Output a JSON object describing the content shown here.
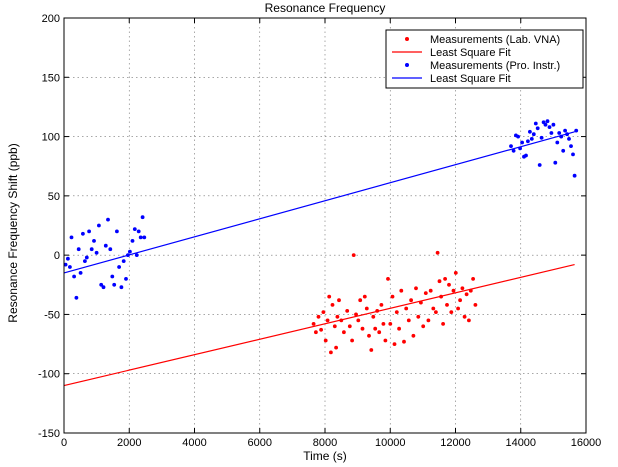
{
  "chart_data": {
    "type": "scatter",
    "title": "Resonance Frequency",
    "xlabel": "Time (s)",
    "ylabel": "Resonance Frequency Shift (ppb)",
    "xlim": [
      0,
      16000
    ],
    "ylim": [
      -150,
      200
    ],
    "xticks": [
      0,
      2000,
      4000,
      6000,
      8000,
      10000,
      12000,
      14000,
      16000
    ],
    "yticks": [
      -150,
      -100,
      -50,
      0,
      50,
      100,
      150,
      200
    ],
    "grid": true,
    "legend_position": "top-right",
    "series": [
      {
        "name": "Measurements (Lab. VNA)",
        "kind": "scatter",
        "color": "#ff0000",
        "points": [
          [
            7650,
            -58
          ],
          [
            7720,
            -65
          ],
          [
            7800,
            -52
          ],
          [
            7880,
            -63
          ],
          [
            7950,
            -48
          ],
          [
            8020,
            -72
          ],
          [
            8080,
            -55
          ],
          [
            8130,
            -35
          ],
          [
            8180,
            -82
          ],
          [
            8230,
            -42
          ],
          [
            8300,
            -60
          ],
          [
            8340,
            -78
          ],
          [
            8380,
            -52
          ],
          [
            8430,
            -38
          ],
          [
            8500,
            -55
          ],
          [
            8580,
            -65
          ],
          [
            8680,
            -47
          ],
          [
            8760,
            -60
          ],
          [
            8830,
            -72
          ],
          [
            8880,
            0
          ],
          [
            8950,
            -50
          ],
          [
            9020,
            -55
          ],
          [
            9080,
            -38
          ],
          [
            9150,
            -62
          ],
          [
            9220,
            -35
          ],
          [
            9280,
            -45
          ],
          [
            9350,
            -68
          ],
          [
            9420,
            -80
          ],
          [
            9480,
            -52
          ],
          [
            9540,
            -62
          ],
          [
            9600,
            -47
          ],
          [
            9660,
            -65
          ],
          [
            9730,
            -42
          ],
          [
            9790,
            -58
          ],
          [
            9850,
            -72
          ],
          [
            9930,
            -20
          ],
          [
            10000,
            -58
          ],
          [
            10070,
            -35
          ],
          [
            10130,
            -75
          ],
          [
            10200,
            -48
          ],
          [
            10270,
            -62
          ],
          [
            10340,
            -30
          ],
          [
            10420,
            -73
          ],
          [
            10490,
            -45
          ],
          [
            10570,
            -55
          ],
          [
            10640,
            -38
          ],
          [
            10710,
            -68
          ],
          [
            10790,
            -28
          ],
          [
            10860,
            -52
          ],
          [
            10940,
            -40
          ],
          [
            11010,
            -60
          ],
          [
            11090,
            -32
          ],
          [
            11170,
            -55
          ],
          [
            11240,
            -30
          ],
          [
            11320,
            -45
          ],
          [
            11400,
            -48
          ],
          [
            11450,
            2
          ],
          [
            11510,
            -22
          ],
          [
            11560,
            -35
          ],
          [
            11620,
            -58
          ],
          [
            11680,
            -20
          ],
          [
            11740,
            -42
          ],
          [
            11800,
            -25
          ],
          [
            11870,
            -48
          ],
          [
            11940,
            -30
          ],
          [
            12010,
            -15
          ],
          [
            12080,
            -45
          ],
          [
            12140,
            -38
          ],
          [
            12210,
            -28
          ],
          [
            12280,
            -52
          ],
          [
            12340,
            -33
          ],
          [
            12410,
            -55
          ],
          [
            12470,
            -30
          ],
          [
            12540,
            -20
          ],
          [
            12610,
            -42
          ]
        ]
      },
      {
        "name": "Least Square Fit",
        "kind": "line",
        "color": "#ff0000",
        "points": [
          [
            0,
            -110
          ],
          [
            15650,
            -8
          ]
        ]
      },
      {
        "name": "Measurements (Pro. Instr.)",
        "kind": "scatter",
        "color": "#0000ff",
        "points": [
          [
            50,
            -8
          ],
          [
            120,
            -3
          ],
          [
            180,
            -10
          ],
          [
            230,
            15
          ],
          [
            310,
            -18
          ],
          [
            380,
            -36
          ],
          [
            450,
            5
          ],
          [
            510,
            -15
          ],
          [
            580,
            18
          ],
          [
            640,
            -5
          ],
          [
            700,
            -2
          ],
          [
            770,
            20
          ],
          [
            850,
            5
          ],
          [
            920,
            12
          ],
          [
            1000,
            2
          ],
          [
            1070,
            25
          ],
          [
            1140,
            -25
          ],
          [
            1210,
            -27
          ],
          [
            1280,
            8
          ],
          [
            1350,
            30
          ],
          [
            1420,
            5
          ],
          [
            1480,
            -18
          ],
          [
            1540,
            -25
          ],
          [
            1620,
            20
          ],
          [
            1690,
            -10
          ],
          [
            1760,
            -27
          ],
          [
            1830,
            -5
          ],
          [
            1900,
            -20
          ],
          [
            1960,
            0
          ],
          [
            2020,
            3
          ],
          [
            2100,
            12
          ],
          [
            2170,
            22
          ],
          [
            2230,
            0
          ],
          [
            2290,
            20
          ],
          [
            2350,
            15
          ],
          [
            2410,
            32
          ],
          [
            2460,
            15
          ],
          [
            13700,
            92
          ],
          [
            13780,
            88
          ],
          [
            13850,
            101
          ],
          [
            13920,
            100
          ],
          [
            13980,
            90
          ],
          [
            14040,
            95
          ],
          [
            14100,
            83
          ],
          [
            14160,
            84
          ],
          [
            14220,
            96
          ],
          [
            14280,
            104
          ],
          [
            14340,
            98
          ],
          [
            14400,
            102
          ],
          [
            14460,
            111
          ],
          [
            14520,
            107
          ],
          [
            14580,
            76
          ],
          [
            14640,
            99
          ],
          [
            14700,
            112
          ],
          [
            14760,
            110
          ],
          [
            14820,
            113
          ],
          [
            14880,
            108
          ],
          [
            14940,
            103
          ],
          [
            15000,
            110
          ],
          [
            15060,
            78
          ],
          [
            15120,
            95
          ],
          [
            15180,
            103
          ],
          [
            15240,
            100
          ],
          [
            15300,
            88
          ],
          [
            15360,
            105
          ],
          [
            15420,
            102
          ],
          [
            15480,
            98
          ],
          [
            15540,
            92
          ],
          [
            15600,
            85
          ],
          [
            15650,
            67
          ],
          [
            15700,
            105
          ]
        ]
      },
      {
        "name": "Least Square Fit",
        "kind": "line",
        "color": "#0000ff",
        "points": [
          [
            0,
            -15
          ],
          [
            15650,
            104
          ]
        ]
      }
    ]
  }
}
